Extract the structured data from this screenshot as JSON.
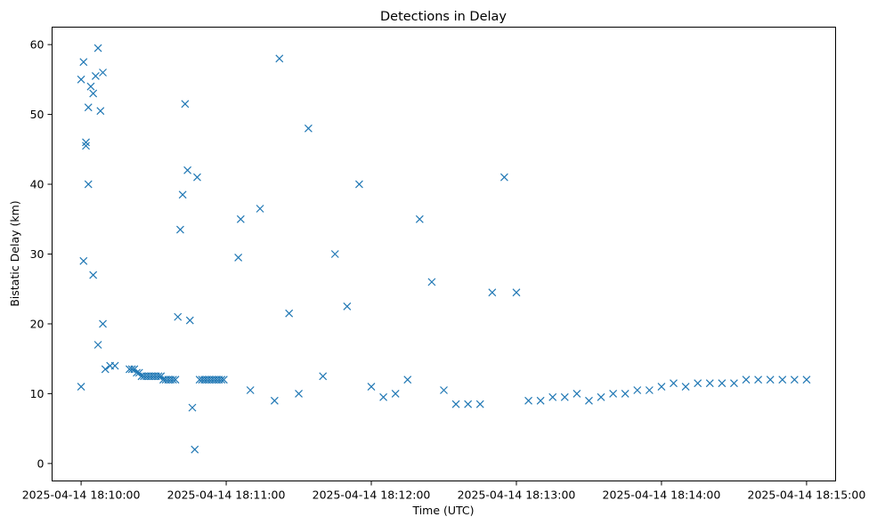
{
  "chart_data": {
    "type": "scatter",
    "title": "Detections in Delay",
    "xlabel": "Time (UTC)",
    "ylabel": "Bistatic Delay (km)",
    "marker": "x",
    "color": "#1f77b4",
    "grid": false,
    "legend": "none",
    "x_unit": "time",
    "xlim": [
      "2025-04-14 18:09:48",
      "2025-04-14 18:15:12"
    ],
    "ylim": [
      -2.5,
      62.5
    ],
    "x_ticks": [
      "2025-04-14 18:10:00",
      "2025-04-14 18:11:00",
      "2025-04-14 18:12:00",
      "2025-04-14 18:13:00",
      "2025-04-14 18:14:00",
      "2025-04-14 18:15:00"
    ],
    "y_ticks": [
      "0",
      "10",
      "20",
      "30",
      "40",
      "50",
      "60"
    ],
    "series": [
      {
        "marker": "x",
        "x": [
          "2025-04-14 18:10:00",
          "2025-04-14 18:10:01",
          "2025-04-14 18:10:02",
          "2025-04-14 18:10:03",
          "2025-04-14 18:10:04",
          "2025-04-14 18:10:05",
          "2025-04-14 18:10:06",
          "2025-04-14 18:10:07",
          "2025-04-14 18:10:08",
          "2025-04-14 18:10:09",
          "2025-04-14 18:10:00",
          "2025-04-14 18:10:01",
          "2025-04-14 18:10:02",
          "2025-04-14 18:10:03",
          "2025-04-14 18:10:05",
          "2025-04-14 18:10:07",
          "2025-04-14 18:10:09",
          "2025-04-14 18:10:10",
          "2025-04-14 18:10:12",
          "2025-04-14 18:10:14",
          "2025-04-14 18:10:20",
          "2025-04-14 18:10:21",
          "2025-04-14 18:10:22",
          "2025-04-14 18:10:23",
          "2025-04-14 18:10:24",
          "2025-04-14 18:10:25",
          "2025-04-14 18:10:26",
          "2025-04-14 18:10:27",
          "2025-04-14 18:10:28",
          "2025-04-14 18:10:29",
          "2025-04-14 18:10:30",
          "2025-04-14 18:10:31",
          "2025-04-14 18:10:32",
          "2025-04-14 18:10:33",
          "2025-04-14 18:10:34",
          "2025-04-14 18:10:35",
          "2025-04-14 18:10:36",
          "2025-04-14 18:10:37",
          "2025-04-14 18:10:38",
          "2025-04-14 18:10:39",
          "2025-04-14 18:10:40",
          "2025-04-14 18:10:41",
          "2025-04-14 18:10:42",
          "2025-04-14 18:10:43",
          "2025-04-14 18:10:44",
          "2025-04-14 18:10:45",
          "2025-04-14 18:10:46",
          "2025-04-14 18:10:47",
          "2025-04-14 18:10:48",
          "2025-04-14 18:10:49",
          "2025-04-14 18:10:50",
          "2025-04-14 18:10:51",
          "2025-04-14 18:10:52",
          "2025-04-14 18:10:53",
          "2025-04-14 18:10:54",
          "2025-04-14 18:10:55",
          "2025-04-14 18:10:56",
          "2025-04-14 18:10:57",
          "2025-04-14 18:10:58",
          "2025-04-14 18:10:59",
          "2025-04-14 18:11:05",
          "2025-04-14 18:11:06",
          "2025-04-14 18:11:10",
          "2025-04-14 18:11:14",
          "2025-04-14 18:11:20",
          "2025-04-14 18:11:22",
          "2025-04-14 18:11:26",
          "2025-04-14 18:11:30",
          "2025-04-14 18:11:34",
          "2025-04-14 18:11:40",
          "2025-04-14 18:11:45",
          "2025-04-14 18:11:50",
          "2025-04-14 18:11:55",
          "2025-04-14 18:12:00",
          "2025-04-14 18:12:05",
          "2025-04-14 18:12:10",
          "2025-04-14 18:12:15",
          "2025-04-14 18:12:20",
          "2025-04-14 18:12:25",
          "2025-04-14 18:12:30",
          "2025-04-14 18:12:35",
          "2025-04-14 18:12:40",
          "2025-04-14 18:12:45",
          "2025-04-14 18:12:50",
          "2025-04-14 18:12:55",
          "2025-04-14 18:13:00",
          "2025-04-14 18:13:05",
          "2025-04-14 18:13:10",
          "2025-04-14 18:13:15",
          "2025-04-14 18:13:20",
          "2025-04-14 18:13:25",
          "2025-04-14 18:13:30",
          "2025-04-14 18:13:35",
          "2025-04-14 18:13:40",
          "2025-04-14 18:13:45",
          "2025-04-14 18:13:50",
          "2025-04-14 18:13:55",
          "2025-04-14 18:14:00",
          "2025-04-14 18:14:05",
          "2025-04-14 18:14:10",
          "2025-04-14 18:14:15",
          "2025-04-14 18:14:20",
          "2025-04-14 18:14:25",
          "2025-04-14 18:14:30",
          "2025-04-14 18:14:35",
          "2025-04-14 18:14:40",
          "2025-04-14 18:14:45",
          "2025-04-14 18:14:50",
          "2025-04-14 18:14:55",
          "2025-04-14 18:15:00"
        ],
        "y": [
          55.0,
          57.5,
          46.0,
          51.0,
          54.0,
          53.0,
          55.5,
          59.5,
          50.5,
          56.0,
          11.0,
          29.0,
          45.5,
          40.0,
          27.0,
          17.0,
          20.0,
          13.5,
          14.0,
          14.0,
          13.5,
          13.5,
          13.5,
          13.0,
          13.0,
          12.5,
          12.5,
          12.5,
          12.5,
          12.5,
          12.5,
          12.5,
          12.5,
          12.5,
          12.0,
          12.0,
          12.0,
          12.0,
          12.0,
          12.0,
          21.0,
          33.5,
          38.5,
          51.5,
          42.0,
          20.5,
          8.0,
          2.0,
          41.0,
          12.0,
          12.0,
          12.0,
          12.0,
          12.0,
          12.0,
          12.0,
          12.0,
          12.0,
          12.0,
          12.0,
          29.5,
          35.0,
          10.5,
          36.5,
          9.0,
          58.0,
          21.5,
          10.0,
          48.0,
          12.5,
          30.0,
          22.5,
          40.0,
          11.0,
          9.5,
          10.0,
          12.0,
          35.0,
          26.0,
          10.5,
          8.5,
          8.5,
          8.5,
          24.5,
          41.0,
          24.5,
          9.0,
          9.0,
          9.5,
          9.5,
          10.0,
          9.0,
          9.5,
          10.0,
          10.0,
          10.5,
          10.5,
          11.0,
          11.5,
          11.0,
          11.5,
          11.5,
          11.5,
          11.5,
          12.0,
          12.0,
          12.0,
          12.0,
          12.0,
          12.0
        ]
      }
    ]
  }
}
